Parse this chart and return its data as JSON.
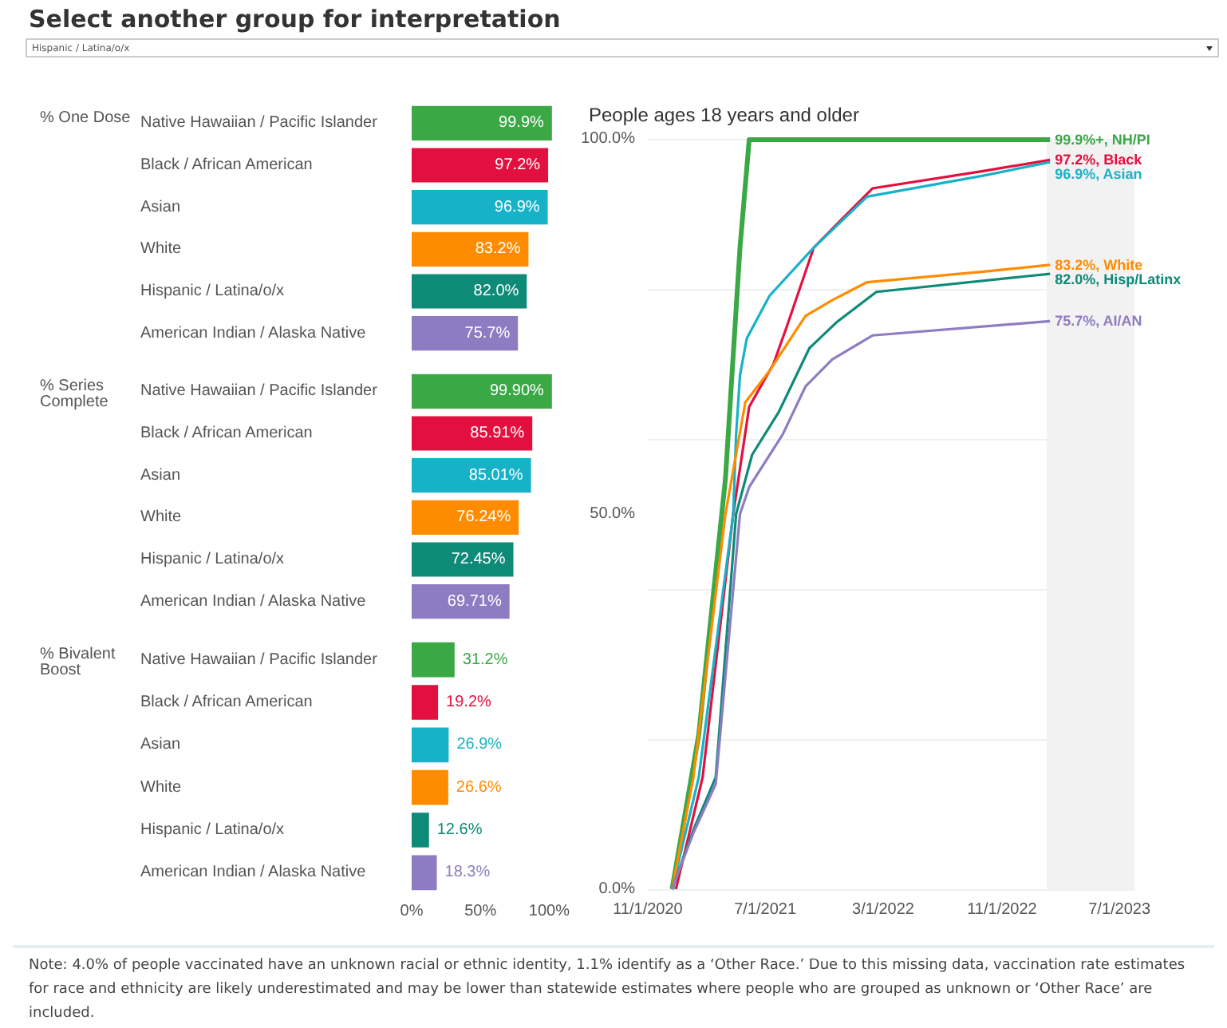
{
  "chart_data": [
    {
      "type": "bar",
      "orientation": "horizontal",
      "title": "% One Dose",
      "categories": [
        "Native Hawaiian / Pacific Islander",
        "Black / African American",
        "Asian",
        "White",
        "Hispanic / Latina/o/x",
        "American Indian / Alaska Native"
      ],
      "values": [
        99.9,
        97.2,
        96.9,
        83.2,
        82.0,
        75.7
      ],
      "value_labels": [
        "99.9%",
        "97.2%",
        "96.9%",
        "83.2%",
        "82.0%",
        "75.7%"
      ],
      "colors": [
        "#3aa845",
        "#e3103f",
        "#17b2c8",
        "#ff8c00",
        "#0e8a78",
        "#8e7cc3"
      ],
      "xlim": [
        0,
        100
      ],
      "tick_labels": "y"
    },
    {
      "type": "bar",
      "orientation": "horizontal",
      "title": "% Series Complete",
      "categories": [
        "Native Hawaiian / Pacific Islander",
        "Black / African American",
        "Asian",
        "White",
        "Hispanic / Latina/o/x",
        "American Indian / Alaska Native"
      ],
      "values": [
        99.9,
        85.91,
        85.01,
        76.24,
        72.45,
        69.71
      ],
      "value_labels": [
        "99.90%",
        "85.91%",
        "85.01%",
        "76.24%",
        "72.45%",
        "69.71%"
      ],
      "colors": [
        "#3aa845",
        "#e3103f",
        "#17b2c8",
        "#ff8c00",
        "#0e8a78",
        "#8e7cc3"
      ],
      "xlim": [
        0,
        100
      ],
      "tick_labels": "y"
    },
    {
      "type": "bar",
      "orientation": "horizontal",
      "title": "% Bivalent Boost",
      "categories": [
        "Native Hawaiian / Pacific Islander",
        "Black / African American",
        "Asian",
        "White",
        "Hispanic / Latina/o/x",
        "American Indian / Alaska Native"
      ],
      "values": [
        31.2,
        19.2,
        26.9,
        26.6,
        12.6,
        18.3
      ],
      "value_labels": [
        "31.2%",
        "19.2%",
        "26.9%",
        "26.6%",
        "12.6%",
        "18.3%"
      ],
      "colors": [
        "#3aa845",
        "#e3103f",
        "#17b2c8",
        "#ff8c00",
        "#0e8a78",
        "#8e7cc3"
      ],
      "xlim": [
        0,
        100
      ],
      "xticks": [
        {
          "value": 0,
          "label": "0%"
        },
        {
          "value": 50,
          "label": "50%"
        },
        {
          "value": 100,
          "label": "100%"
        }
      ]
    },
    {
      "type": "line",
      "title": "People ages 18 years and older",
      "marker": "none",
      "grid": "y",
      "xlim": [
        "2020-11-01",
        "2023-08-01"
      ],
      "xticks": [
        {
          "value": "2020-11-01",
          "label": "11/1/2020"
        },
        {
          "value": "2021-07-01",
          "label": "7/1/2021"
        },
        {
          "value": "2022-03-01",
          "label": "3/1/2022"
        },
        {
          "value": "2022-11-01",
          "label": "11/1/2022"
        },
        {
          "value": "2023-07-01",
          "label": "7/1/2023"
        }
      ],
      "ylim": [
        0,
        100
      ],
      "yticks": [
        {
          "value": 0,
          "label": "0.0%"
        },
        {
          "value": 50,
          "label": "50.0%"
        },
        {
          "value": 100,
          "label": "100.0%"
        }
      ],
      "bands": [
        {
          "axis": "x",
          "from": "2023-02-01",
          "to": "2023-08-01",
          "color": "#f2f2f2"
        }
      ],
      "series": [
        {
          "name": "99.9%+, NH/PI",
          "color": "#3aa845",
          "x": [
            "2020-12-21",
            "2021-02-14",
            "2021-04-10",
            "2021-05-10",
            "2021-05-29",
            "2023-02-08"
          ],
          "values": [
            0,
            20.6,
            54.7,
            85.5,
            99.9,
            99.9
          ]
        },
        {
          "name": "97.2%, Black",
          "color": "#e3103f",
          "x": [
            "2020-12-29",
            "2021-02-22",
            "2021-04-26",
            "2021-05-29",
            "2021-07-18",
            "2021-08-14",
            "2021-10-09",
            "2021-12-03",
            "2022-02-07",
            "2022-09-23",
            "2023-02-08"
          ],
          "values": [
            0,
            14.9,
            50,
            64.3,
            70.0,
            74.9,
            85.5,
            89.1,
            93.4,
            95.7,
            97.2
          ]
        },
        {
          "name": "96.9%, Asian",
          "color": "#17b2c8",
          "x": [
            "2020-12-21",
            "2021-02-14",
            "2021-04-26",
            "2021-05-02",
            "2021-05-10",
            "2021-05-24",
            "2021-07-10",
            "2021-10-09",
            "2022-01-27",
            "2022-09-23",
            "2023-02-08"
          ],
          "values": [
            0,
            14.9,
            50,
            60.6,
            68.5,
            73.4,
            79.1,
            85.5,
            92.3,
            95.1,
            96.9
          ]
        },
        {
          "name": "83.2%, White",
          "color": "#ff8c00",
          "x": [
            "2020-12-21",
            "2021-02-03",
            "2021-04-10",
            "2021-05-21",
            "2021-07-10",
            "2021-09-22",
            "2021-11-16",
            "2022-01-27",
            "2022-09-23",
            "2023-02-08"
          ],
          "values": [
            0,
            14.9,
            50,
            64.9,
            69.1,
            76.4,
            78.5,
            80.9,
            82.3,
            83.2
          ]
        },
        {
          "name": "82.0%, Hisp/Latinx",
          "color": "#0e8a78",
          "x": [
            "2020-12-21",
            "2021-02-03",
            "2021-03-21",
            "2021-05-02",
            "2021-06-04",
            "2021-07-29",
            "2021-09-30",
            "2021-11-24",
            "2022-02-15",
            "2022-12-23",
            "2023-02-08"
          ],
          "values": [
            0,
            7.9,
            14.9,
            50,
            57.9,
            63.6,
            72.1,
            75.5,
            79.6,
            81.7,
            82.0
          ]
        },
        {
          "name": "75.7%, AI/AN",
          "color": "#8e7cc3",
          "x": [
            "2020-12-21",
            "2021-02-03",
            "2021-03-21",
            "2021-05-10",
            "2021-05-29",
            "2021-08-06",
            "2021-09-22",
            "2021-11-16",
            "2022-02-07",
            "2023-02-08"
          ],
          "values": [
            0,
            7.5,
            14.0,
            50,
            53.6,
            60.6,
            67.0,
            70.6,
            73.8,
            75.7
          ]
        }
      ],
      "annotations": [
        "Select another group for interpretation",
        "Hispanic / Latina/o/x",
        "Note: 4.0% of people vaccinated have an unknown racial or ethnic identity, 1.1% identify as a ‘Other Race.’ Due to this missing data, vaccination rate estimates for race and ethnicity are likely underestimated and may be lower than statewide estimates where people who are grouped as unknown or ‘Other Race’ are included."
      ]
    }
  ]
}
